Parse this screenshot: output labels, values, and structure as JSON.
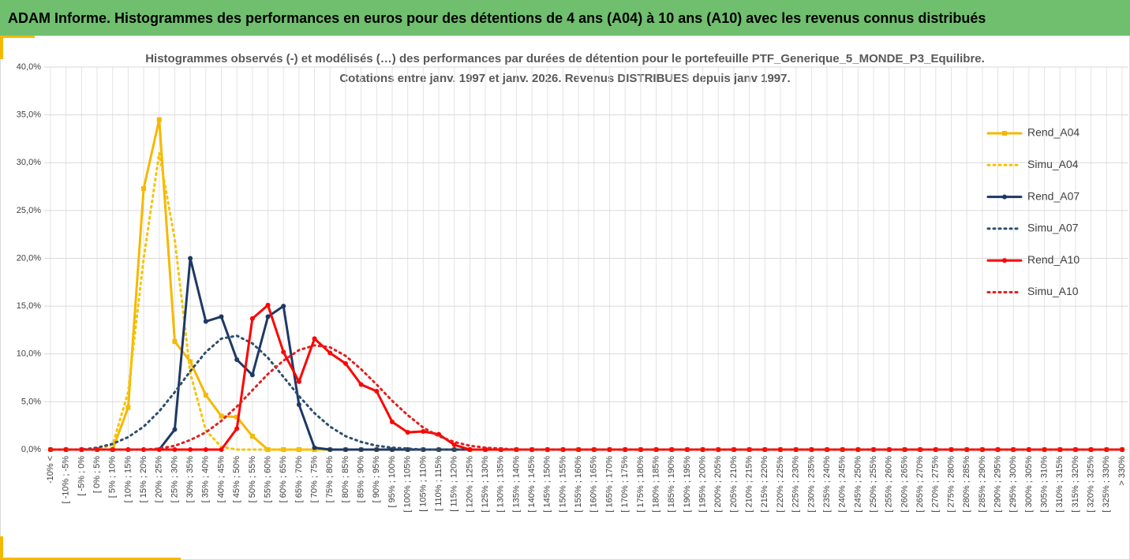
{
  "header": {
    "title": "ADAM Informe. Histogrammes des performances en euros pour des détentions de 4 ans (A04) à 10 ans (A10) avec les revenus connus distribués"
  },
  "chart_data": {
    "type": "line",
    "title": "Histogrammes observés (-) et modélisés (…) des performances par durées de détention pour le portefeuille PTF_Generique_5_MONDE_P3_Equilibre.",
    "subtitle": "Cotations entre janv. 1997 et janv. 2026. Revenus DISTRIBUES depuis janv 1997.",
    "categories": [
      "-10% <",
      "[ -10% ; -5%",
      "[ -5% ; 0%",
      "[ 0% ; 5%",
      "[ 5% ; 10%",
      "[ 10% ; 15%",
      "[ 15% ; 20%",
      "[ 20% ; 25%",
      "[ 25% ; 30%",
      "[ 30% ; 35%",
      "[ 35% ; 40%",
      "[ 40% ; 45%",
      "[ 45% ; 50%",
      "[ 50% ; 55%",
      "[ 55% ; 60%",
      "[ 60% ; 65%",
      "[ 65% ; 70%",
      "[ 70% ; 75%",
      "[ 75% ; 80%",
      "[ 80% ; 85%",
      "[ 85% ; 90%",
      "[ 90% ; 95%",
      "[ 95% ; 100%",
      "[ 100% ; 105%",
      "[ 105% ; 110%",
      "[ 110% ; 115%",
      "[ 115% ; 120%",
      "[ 120% ; 125%",
      "[ 125% ; 130%",
      "[ 130% ; 135%",
      "[ 135% ; 140%",
      "[ 140% ; 145%",
      "[ 145% ; 150%",
      "[ 150% ; 155%",
      "[ 155% ; 160%",
      "[ 160% ; 165%",
      "[ 165% ; 170%",
      "[ 170% ; 175%",
      "[ 175% ; 180%",
      "[ 180% ; 185%",
      "[ 185% ; 190%",
      "[ 190% ; 195%",
      "[ 195% ; 200%",
      "[ 200% ; 205%",
      "[ 205% ; 210%",
      "[ 210% ; 215%",
      "[ 215% ; 220%",
      "[ 220% ; 225%",
      "[ 225% ; 230%",
      "[ 230% ; 235%",
      "[ 235% ; 240%",
      "[ 240% ; 245%",
      "[ 245% ; 250%",
      "[ 250% ; 255%",
      "[ 255% ; 260%",
      "[ 260% ; 265%",
      "[ 265% ; 270%",
      "[ 270% ; 275%",
      "[ 275% ; 280%",
      "[ 280% ; 285%",
      "[ 285% ; 290%",
      "[ 290% ; 295%",
      "[ 295% ; 300%",
      "[ 300% ; 305%",
      "[ 305% ; 310%",
      "[ 310% ; 315%",
      "[ 315% ; 320%",
      "[ 320% ; 325%",
      "[ 325% ; 330%",
      "> 330%"
    ],
    "series": [
      {
        "name": "Rend_A04",
        "color": "#f5b800",
        "dash": "solid",
        "marker": "square",
        "values": [
          0,
          0,
          0,
          0,
          0,
          4.4,
          27.3,
          34.5,
          11.3,
          9.2,
          5.7,
          3.5,
          3.4,
          1.4,
          0,
          0,
          0,
          0,
          0,
          0,
          0,
          0,
          0,
          0,
          0,
          0,
          0,
          0,
          0,
          0,
          0,
          0,
          0,
          0,
          0,
          0,
          0,
          0,
          0,
          0,
          0,
          0,
          0,
          0,
          0,
          0,
          0,
          0,
          0,
          0,
          0,
          0,
          0,
          0,
          0,
          0,
          0,
          0,
          0,
          0,
          0,
          0,
          0,
          0,
          0,
          0,
          0,
          0,
          0,
          0
        ]
      },
      {
        "name": "Simu_A04",
        "color": "#f5c400",
        "dash": "dotted",
        "marker": null,
        "values": [
          0,
          0,
          0,
          0,
          0.5,
          6,
          20,
          31,
          22,
          8,
          2,
          0.3,
          0,
          0,
          0,
          0,
          0,
          0,
          0,
          0,
          0,
          0,
          0,
          0,
          0,
          0,
          0,
          0,
          0,
          0,
          0,
          0,
          0,
          0,
          0,
          0,
          0,
          0,
          0,
          0,
          0,
          0,
          0,
          0,
          0,
          0,
          0,
          0,
          0,
          0,
          0,
          0,
          0,
          0,
          0,
          0,
          0,
          0,
          0,
          0,
          0,
          0,
          0,
          0,
          0,
          0,
          0,
          0,
          0,
          0
        ]
      },
      {
        "name": "Rend_A07",
        "color": "#1f3864",
        "dash": "solid",
        "marker": "circle",
        "values": [
          0,
          0,
          0,
          0,
          0,
          0,
          0,
          0,
          2.1,
          20,
          13.4,
          13.9,
          9.4,
          7.8,
          13.9,
          15,
          4.7,
          0.2,
          0,
          0,
          0,
          0,
          0,
          0,
          0,
          0,
          0,
          0,
          0,
          0,
          0,
          0,
          0,
          0,
          0,
          0,
          0,
          0,
          0,
          0,
          0,
          0,
          0,
          0,
          0,
          0,
          0,
          0,
          0,
          0,
          0,
          0,
          0,
          0,
          0,
          0,
          0,
          0,
          0,
          0,
          0,
          0,
          0,
          0,
          0,
          0,
          0,
          0,
          0,
          0
        ]
      },
      {
        "name": "Simu_A07",
        "color": "#2e4e6e",
        "dash": "dotted",
        "marker": null,
        "values": [
          0,
          0,
          0,
          0.2,
          0.6,
          1.3,
          2.4,
          4,
          6,
          8.2,
          10.2,
          11.6,
          11.9,
          11.1,
          9.6,
          7.6,
          5.6,
          3.8,
          2.4,
          1.4,
          0.8,
          0.4,
          0.2,
          0.1,
          0,
          0,
          0,
          0,
          0,
          0,
          0,
          0,
          0,
          0,
          0,
          0,
          0,
          0,
          0,
          0,
          0,
          0,
          0,
          0,
          0,
          0,
          0,
          0,
          0,
          0,
          0,
          0,
          0,
          0,
          0,
          0,
          0,
          0,
          0,
          0,
          0,
          0,
          0,
          0,
          0,
          0,
          0,
          0,
          0,
          0
        ]
      },
      {
        "name": "Rend_A10",
        "color": "#ff0000",
        "dash": "solid",
        "marker": "circle",
        "values": [
          0,
          0,
          0,
          0,
          0,
          0,
          0,
          0,
          0,
          0,
          0,
          0,
          2.2,
          13.7,
          15.1,
          10.2,
          7.1,
          11.6,
          10.1,
          9,
          6.8,
          6.1,
          2.9,
          1.8,
          1.9,
          1.6,
          0.5,
          0,
          0,
          0,
          0,
          0,
          0,
          0,
          0,
          0,
          0,
          0,
          0,
          0,
          0,
          0,
          0,
          0,
          0,
          0,
          0,
          0,
          0,
          0,
          0,
          0,
          0,
          0,
          0,
          0,
          0,
          0,
          0,
          0,
          0,
          0,
          0,
          0,
          0,
          0,
          0,
          0,
          0,
          0
        ]
      },
      {
        "name": "Simu_A10",
        "color": "#e02020",
        "dash": "dotted",
        "marker": null,
        "values": [
          0,
          0,
          0,
          0,
          0,
          0,
          0,
          0.1,
          0.4,
          1,
          1.8,
          3,
          4.5,
          6.2,
          7.9,
          9.3,
          10.4,
          10.9,
          10.7,
          9.8,
          8.4,
          6.8,
          5.1,
          3.6,
          2.3,
          1.4,
          0.8,
          0.4,
          0.2,
          0.1,
          0,
          0,
          0,
          0,
          0,
          0,
          0,
          0,
          0,
          0,
          0,
          0,
          0,
          0,
          0,
          0,
          0,
          0,
          0,
          0,
          0,
          0,
          0,
          0,
          0,
          0,
          0,
          0,
          0,
          0,
          0,
          0,
          0,
          0,
          0,
          0,
          0,
          0,
          0,
          0
        ]
      }
    ],
    "ylim": [
      0,
      40
    ],
    "yticks": [
      {
        "value": 0,
        "label": "0,0%"
      },
      {
        "value": 5,
        "label": "5,0%"
      },
      {
        "value": 10,
        "label": "10,0%"
      },
      {
        "value": 15,
        "label": "15,0%"
      },
      {
        "value": 20,
        "label": "20,0%"
      },
      {
        "value": 25,
        "label": "25,0%"
      },
      {
        "value": 30,
        "label": "30,0%"
      },
      {
        "value": 35,
        "label": "35,0%"
      },
      {
        "value": 40,
        "label": "40,0%"
      }
    ],
    "grid": true,
    "legend": "right"
  }
}
